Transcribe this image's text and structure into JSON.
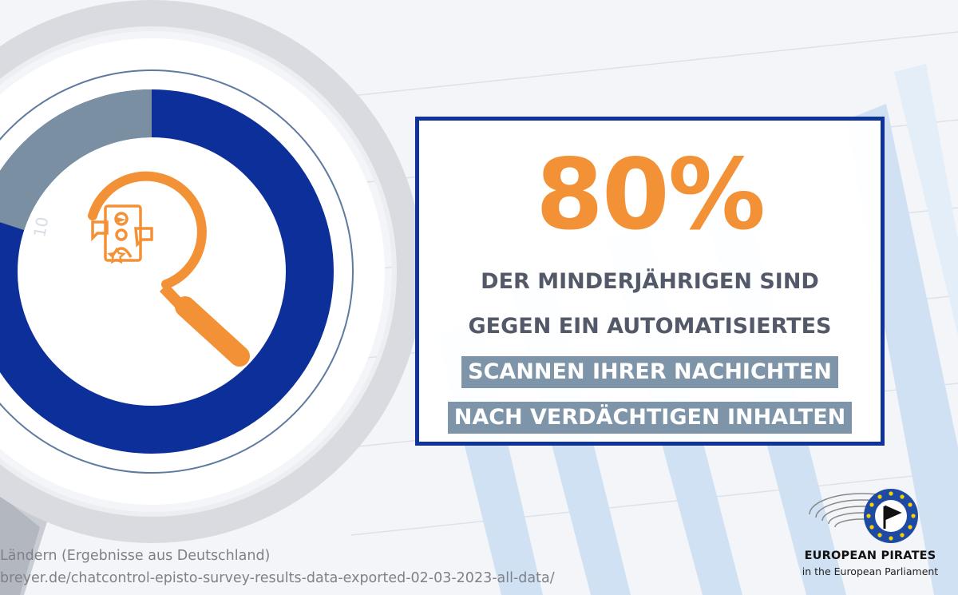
{
  "stat": {
    "value": "80%",
    "lines": [
      "DER MINDERJÄHRIGEN SIND",
      "GEGEN EIN AUTOMATISIERTES",
      "SCANNEN IHRER NACHICHTEN",
      "NACH VERDÄCHTIGEN INHALTEN"
    ]
  },
  "donut": {
    "share": 0.8,
    "tick_label": "10"
  },
  "source": {
    "line1": "Ländern (Ergebnisse aus Deutschland)",
    "line2": "breyer.de/chatcontrol-episto-survey-results-data-exported-02-03-2023-all-data/"
  },
  "logo": {
    "name": "EUROPEAN PIRATES",
    "sub": "in the European Parliament"
  },
  "colors": {
    "accent_orange": "#f39137",
    "brand_blue": "#10339a",
    "slate": "#7e94a8",
    "text_gray": "#535968"
  }
}
